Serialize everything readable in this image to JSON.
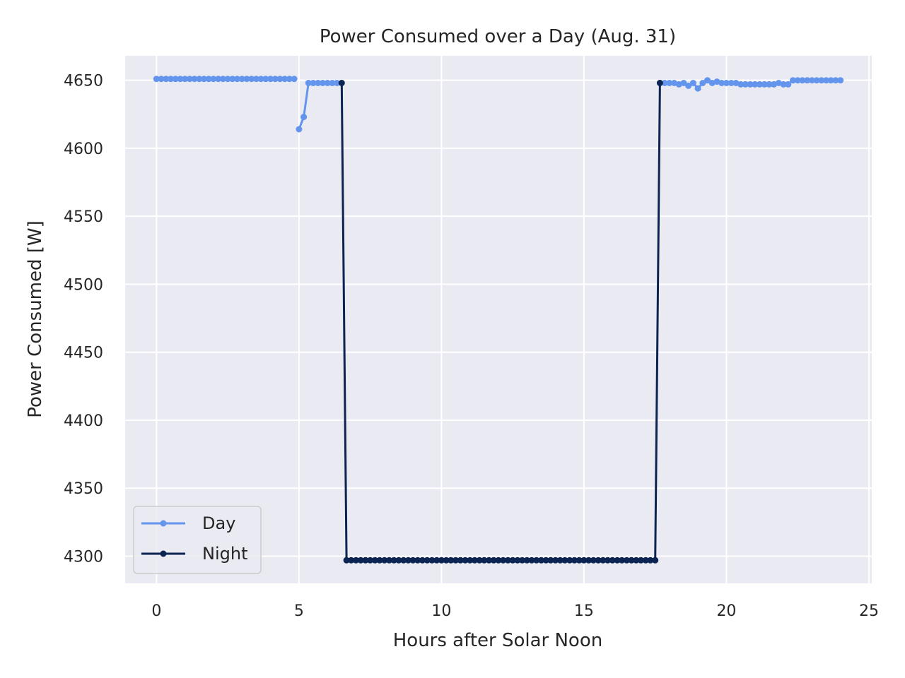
{
  "chart_data": {
    "type": "line",
    "title": "Power Consumed over a Day (Aug. 31)",
    "xlabel": "Hours after Solar Noon",
    "ylabel": "Power Consumed [W]",
    "xlim": [
      -1.1,
      25.1
    ],
    "ylim": [
      4280,
      4668
    ],
    "xticks": [
      0,
      5,
      10,
      15,
      20,
      25
    ],
    "yticks": [
      4300,
      4350,
      4400,
      4450,
      4500,
      4550,
      4600,
      4650
    ],
    "grid": true,
    "legend_position": "lower-left",
    "background_color": "#eaeaf2",
    "series": [
      {
        "name": "Day",
        "color": "#6495ed",
        "x": [
          0,
          0.167,
          0.333,
          0.5,
          0.667,
          0.833,
          1.0,
          1.167,
          1.333,
          1.5,
          1.667,
          1.833,
          2.0,
          2.167,
          2.333,
          2.5,
          2.667,
          2.833,
          3.0,
          3.167,
          3.333,
          3.5,
          3.667,
          3.833,
          4.0,
          4.167,
          4.333,
          4.5,
          4.667,
          4.833,
          null,
          5.0,
          5.167,
          5.333,
          5.5,
          5.667,
          5.833,
          6.0,
          6.167,
          6.333,
          null,
          17.667,
          17.833,
          18.0,
          18.167,
          18.333,
          18.5,
          18.667,
          18.833,
          19.0,
          19.167,
          19.333,
          19.5,
          19.667,
          19.833,
          20.0,
          20.167,
          20.333,
          20.5,
          20.667,
          20.833,
          21.0,
          21.167,
          21.333,
          21.5,
          21.667,
          21.833,
          22.0,
          22.167,
          22.333,
          22.5,
          22.667,
          22.833,
          23.0,
          23.167,
          23.333,
          23.5,
          23.667,
          23.833,
          24.0
        ],
        "values": [
          4651,
          4651,
          4651,
          4651,
          4651,
          4651,
          4651,
          4651,
          4651,
          4651,
          4651,
          4651,
          4651,
          4651,
          4651,
          4651,
          4651,
          4651,
          4651,
          4651,
          4651,
          4651,
          4651,
          4651,
          4651,
          4651,
          4651,
          4651,
          4651,
          4651,
          null,
          4614,
          4623,
          4648,
          4648,
          4648,
          4648,
          4648,
          4648,
          4648,
          null,
          4648,
          4648,
          4648,
          4648,
          4647,
          4648,
          4646,
          4648,
          4644,
          4648,
          4650,
          4648,
          4649,
          4648,
          4648,
          4648,
          4648,
          4647,
          4647,
          4647,
          4647,
          4647,
          4647,
          4647,
          4647,
          4648,
          4647,
          4647,
          4650,
          4650,
          4650,
          4650,
          4650,
          4650,
          4650,
          4650,
          4650,
          4650,
          4650
        ]
      },
      {
        "name": "Night",
        "color": "#0b2452",
        "x": [
          6.5,
          6.667,
          6.833,
          7.0,
          7.167,
          7.333,
          7.5,
          7.667,
          7.833,
          8.0,
          8.167,
          8.333,
          8.5,
          8.667,
          8.833,
          9.0,
          9.167,
          9.333,
          9.5,
          9.667,
          9.833,
          10.0,
          10.167,
          10.333,
          10.5,
          10.667,
          10.833,
          11.0,
          11.167,
          11.333,
          11.5,
          11.667,
          11.833,
          12.0,
          12.167,
          12.333,
          12.5,
          12.667,
          12.833,
          13.0,
          13.167,
          13.333,
          13.5,
          13.667,
          13.833,
          14.0,
          14.167,
          14.333,
          14.5,
          14.667,
          14.833,
          15.0,
          15.167,
          15.333,
          15.5,
          15.667,
          15.833,
          16.0,
          16.167,
          16.333,
          16.5,
          16.667,
          16.833,
          17.0,
          17.167,
          17.333,
          17.5,
          17.667
        ],
        "values": [
          4648,
          4297,
          4297,
          4297,
          4297,
          4297,
          4297,
          4297,
          4297,
          4297,
          4297,
          4297,
          4297,
          4297,
          4297,
          4297,
          4297,
          4297,
          4297,
          4297,
          4297,
          4297,
          4297,
          4297,
          4297,
          4297,
          4297,
          4297,
          4297,
          4297,
          4297,
          4297,
          4297,
          4297,
          4297,
          4297,
          4297,
          4297,
          4297,
          4297,
          4297,
          4297,
          4297,
          4297,
          4297,
          4297,
          4297,
          4297,
          4297,
          4297,
          4297,
          4297,
          4297,
          4297,
          4297,
          4297,
          4297,
          4297,
          4297,
          4297,
          4297,
          4297,
          4297,
          4297,
          4297,
          4297,
          4297,
          4648
        ]
      }
    ]
  }
}
